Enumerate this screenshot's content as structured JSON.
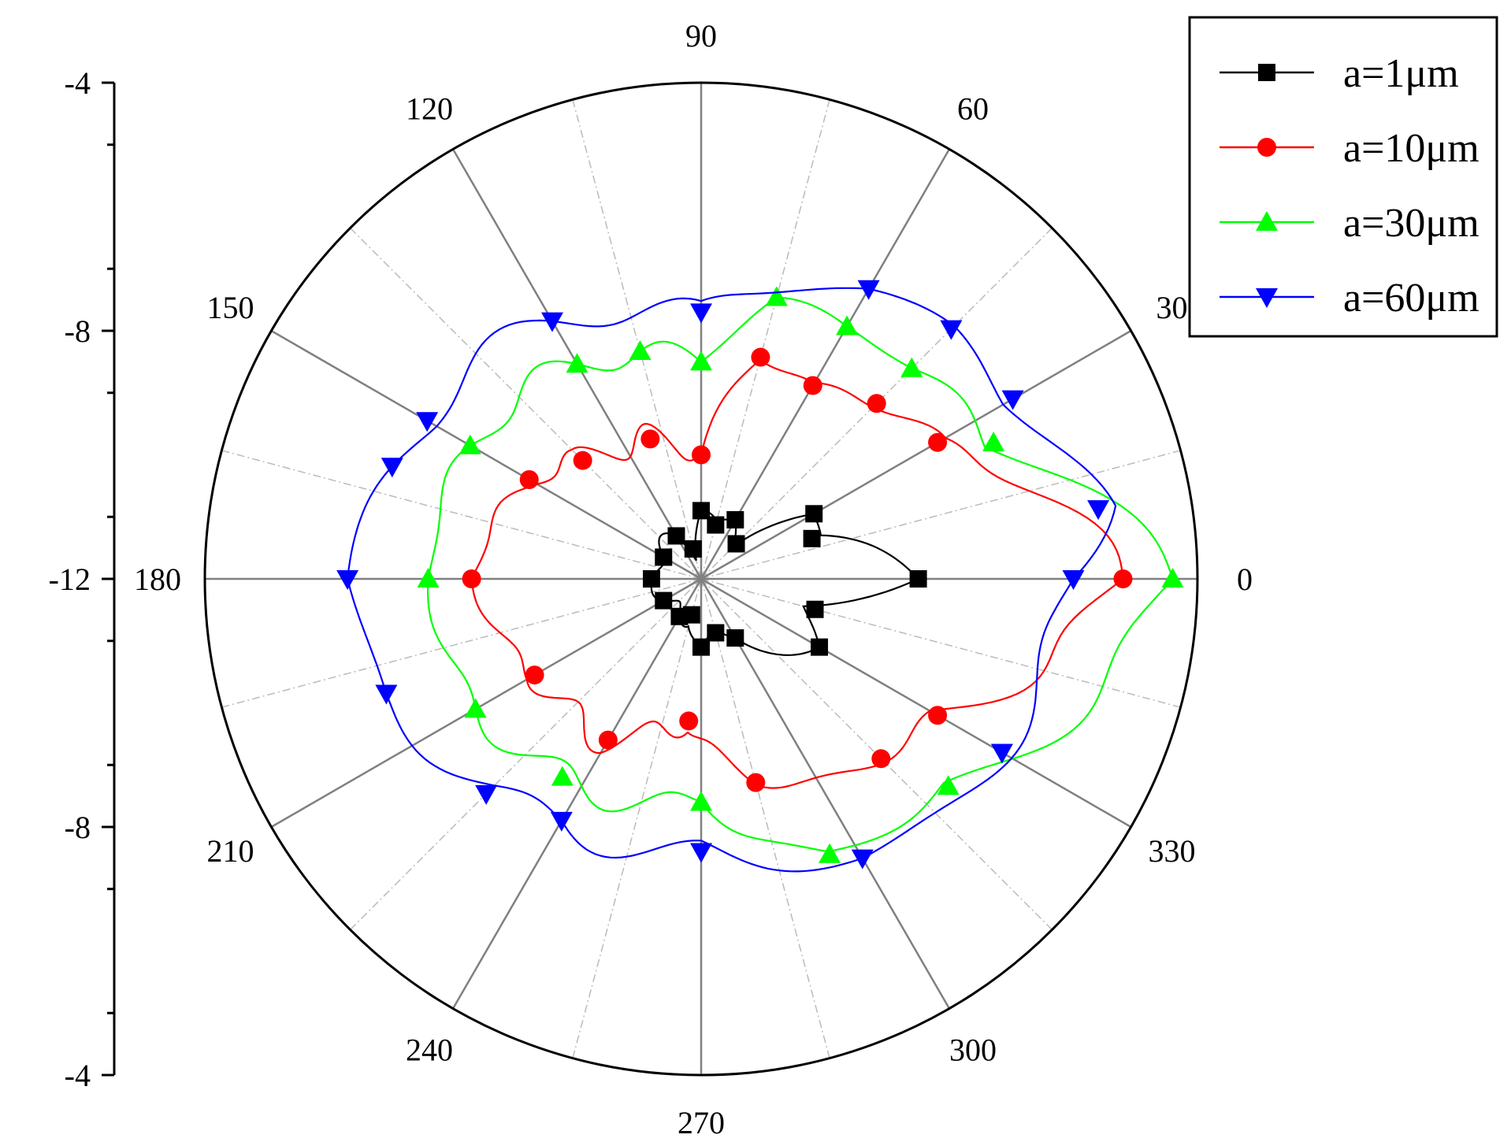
{
  "chart_data": {
    "type": "polar-line",
    "title": "",
    "angle_unit": "degrees",
    "angular_tick_labels": [
      "0",
      "30",
      "60",
      "90",
      "120",
      "150",
      "180",
      "210",
      "240",
      "270",
      "300",
      "330"
    ],
    "radial_axis": {
      "ticks": [
        "-4",
        "-8",
        "-12",
        "-8",
        "-4"
      ],
      "range": [
        -12,
        -4
      ],
      "grid": true
    },
    "legend": {
      "placement": "top-right"
    },
    "series": [
      {
        "name": "a=1μm",
        "color": "#000000",
        "marker": "square",
        "points": [
          {
            "theta": 0,
            "r": -8.5
          },
          {
            "theta": 20,
            "r": -10.1
          },
          {
            "theta": 30,
            "r": -9.9
          },
          {
            "theta": 45,
            "r": -11.2
          },
          {
            "theta": 60,
            "r": -10.9
          },
          {
            "theta": 75,
            "r": -11.1
          },
          {
            "theta": 90,
            "r": -10.9
          },
          {
            "theta": 105,
            "r": -11.5
          },
          {
            "theta": 120,
            "r": -11.2
          },
          {
            "theta": 150,
            "r": -11.3
          },
          {
            "theta": 180,
            "r": -11.2
          },
          {
            "theta": 210,
            "r": -11.3
          },
          {
            "theta": 240,
            "r": -11.3
          },
          {
            "theta": 255,
            "r": -11.4
          },
          {
            "theta": 270,
            "r": -10.9
          },
          {
            "theta": 285,
            "r": -11.1
          },
          {
            "theta": 300,
            "r": -10.9
          },
          {
            "theta": 330,
            "r": -9.8
          },
          {
            "theta": 345,
            "r": -10.1
          }
        ]
      },
      {
        "name": "a=10μm",
        "color": "#ff0000",
        "marker": "circle",
        "points": [
          {
            "theta": 0,
            "r": -5.2
          },
          {
            "theta": 30,
            "r": -7.6
          },
          {
            "theta": 45,
            "r": -8.0
          },
          {
            "theta": 60,
            "r": -8.4
          },
          {
            "theta": 75,
            "r": -8.3
          },
          {
            "theta": 90,
            "r": -10.0
          },
          {
            "theta": 110,
            "r": -9.6
          },
          {
            "theta": 135,
            "r": -9.3
          },
          {
            "theta": 150,
            "r": -8.8
          },
          {
            "theta": 180,
            "r": -8.3
          },
          {
            "theta": 210,
            "r": -8.9
          },
          {
            "theta": 240,
            "r": -9.0
          },
          {
            "theta": 265,
            "r": -9.7
          },
          {
            "theta": 285,
            "r": -8.6
          },
          {
            "theta": 315,
            "r": -7.9
          },
          {
            "theta": 330,
            "r": -7.6
          }
        ]
      },
      {
        "name": "a=30μm",
        "color": "#00ff00",
        "marker": "triangle-up",
        "points": [
          {
            "theta": 0,
            "r": -4.4
          },
          {
            "theta": 25,
            "r": -6.8
          },
          {
            "theta": 45,
            "r": -7.2
          },
          {
            "theta": 60,
            "r": -7.3
          },
          {
            "theta": 75,
            "r": -7.3
          },
          {
            "theta": 90,
            "r": -8.5
          },
          {
            "theta": 105,
            "r": -8.2
          },
          {
            "theta": 120,
            "r": -8.0
          },
          {
            "theta": 150,
            "r": -7.7
          },
          {
            "theta": 180,
            "r": -7.6
          },
          {
            "theta": 210,
            "r": -7.8
          },
          {
            "theta": 235,
            "r": -8.1
          },
          {
            "theta": 270,
            "r": -8.4
          },
          {
            "theta": 295,
            "r": -7.1
          },
          {
            "theta": 320,
            "r": -6.8
          }
        ]
      },
      {
        "name": "a=60μm",
        "color": "#0000ff",
        "marker": "triangle-down",
        "points": [
          {
            "theta": 0,
            "r": -6.0
          },
          {
            "theta": 10,
            "r": -5.5
          },
          {
            "theta": 30,
            "r": -6.2
          },
          {
            "theta": 45,
            "r": -6.3
          },
          {
            "theta": 60,
            "r": -6.6
          },
          {
            "theta": 90,
            "r": -7.7
          },
          {
            "theta": 120,
            "r": -7.2
          },
          {
            "theta": 150,
            "r": -6.9
          },
          {
            "theta": 160,
            "r": -6.7
          },
          {
            "theta": 180,
            "r": -6.3
          },
          {
            "theta": 200,
            "r": -6.6
          },
          {
            "theta": 225,
            "r": -7.1
          },
          {
            "theta": 240,
            "r": -7.5
          },
          {
            "theta": 270,
            "r": -7.6
          },
          {
            "theta": 300,
            "r": -6.8
          },
          {
            "theta": 330,
            "r": -6.4
          }
        ]
      }
    ]
  }
}
